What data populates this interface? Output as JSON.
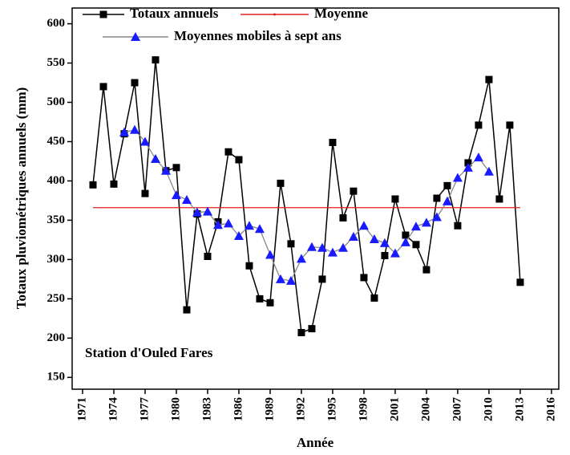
{
  "chart_data": {
    "type": "line",
    "x_label": "Année",
    "y_label": "Totaux pluviométriques annuels (mm)",
    "annotation": "Station d'Ouled Fares",
    "xlim": [
      1970,
      2016.7
    ],
    "xticks": [
      1971,
      1974,
      1977,
      1980,
      1983,
      1986,
      1989,
      1992,
      1995,
      1998,
      2001,
      2004,
      2007,
      2010,
      2013,
      2016
    ],
    "ylim": [
      135,
      620
    ],
    "yticks": [
      150,
      200,
      250,
      300,
      350,
      400,
      450,
      500,
      550,
      600
    ],
    "grid": false,
    "series": [
      {
        "name": "Totaux annuels",
        "color": "#000000",
        "marker": "square",
        "marker_color": "#000000",
        "x": [
          1972,
          1973,
          1974,
          1975,
          1976,
          1977,
          1978,
          1979,
          1980,
          1981,
          1982,
          1983,
          1984,
          1985,
          1986,
          1987,
          1988,
          1989,
          1990,
          1991,
          1992,
          1993,
          1994,
          1995,
          1996,
          1997,
          1998,
          1999,
          2000,
          2001,
          2002,
          2003,
          2004,
          2005,
          2006,
          2007,
          2008,
          2009,
          2010,
          2011,
          2012,
          2013
        ],
        "values": [
          395,
          520,
          396,
          460,
          525,
          384,
          554,
          413,
          417,
          236,
          358,
          304,
          348,
          437,
          427,
          292,
          250,
          245,
          397,
          320,
          207,
          212,
          275,
          449,
          353,
          387,
          277,
          251,
          305,
          377,
          331,
          319,
          287,
          378,
          394,
          343,
          423,
          471,
          529,
          377,
          471,
          271
        ]
      },
      {
        "name": "Moyenne",
        "color": "#e02020",
        "marker": "none",
        "marker_color": "#e02020",
        "x": [
          1972,
          2013
        ],
        "values": [
          366,
          366
        ]
      },
      {
        "name": "Moyennes mobiles à sept ans",
        "color": "#888888",
        "marker": "triangle",
        "marker_color": "#1a1aff",
        "x": [
          1975,
          1976,
          1977,
          1978,
          1979,
          1980,
          1981,
          1982,
          1983,
          1984,
          1985,
          1986,
          1987,
          1988,
          1989,
          1990,
          1991,
          1992,
          1993,
          1994,
          1995,
          1996,
          1997,
          1998,
          1999,
          2000,
          2001,
          2002,
          2003,
          2004,
          2005,
          2006,
          2007,
          2008,
          2009,
          2010
        ],
        "values": [
          462,
          465,
          450,
          428,
          413,
          382,
          376,
          360,
          361,
          344,
          346,
          330,
          343,
          339,
          306,
          275,
          273,
          301,
          316,
          315,
          309,
          315,
          329,
          343,
          326,
          321,
          308,
          322,
          342,
          347,
          354,
          374,
          404,
          417,
          430,
          412
        ]
      }
    ]
  }
}
